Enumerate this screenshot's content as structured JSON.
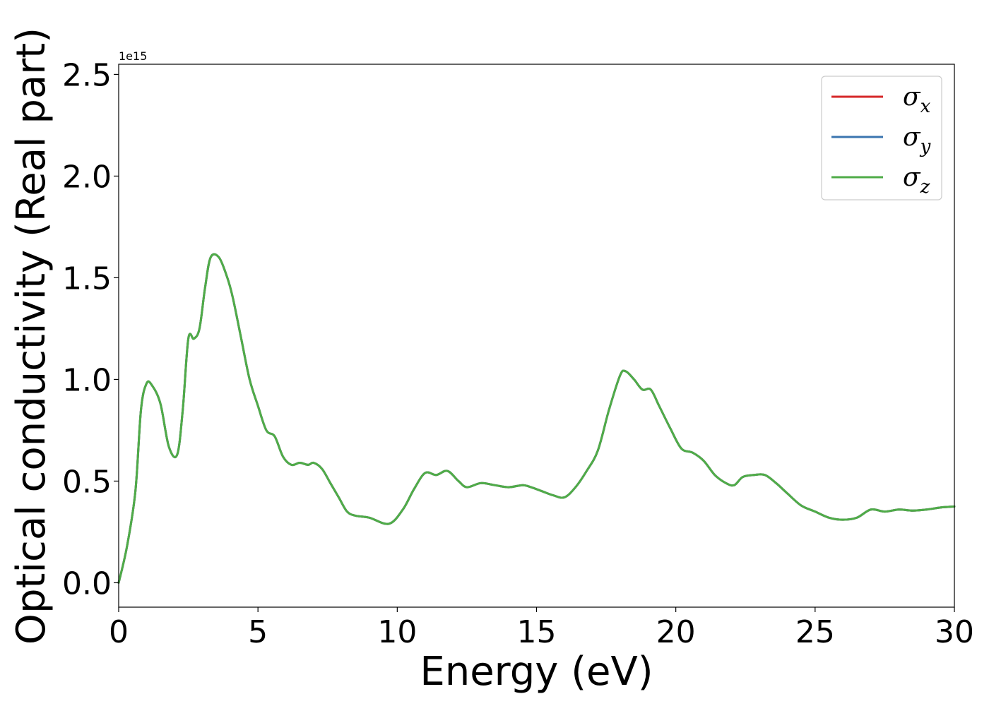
{
  "chart_data": {
    "type": "line",
    "title": "",
    "xlabel": "Energy (eV)",
    "ylabel": "Optical conductivity (Real part)",
    "y_offset_label": "1e15",
    "xlim": [
      0,
      30
    ],
    "ylim": [
      -0.12,
      2.55
    ],
    "x_ticks": [
      0,
      5,
      10,
      15,
      20,
      25,
      30
    ],
    "x_tick_labels": [
      "0",
      "5",
      "10",
      "15",
      "20",
      "25",
      "30"
    ],
    "y_ticks": [
      0.0,
      0.5,
      1.0,
      1.5,
      2.0,
      2.5
    ],
    "y_tick_labels": [
      "0.0",
      "0.5",
      "1.0",
      "1.5",
      "2.0",
      "2.5"
    ],
    "grid": false,
    "legend_position": "top-right",
    "x": [
      0,
      0.3,
      0.6,
      0.8,
      1.0,
      1.2,
      1.5,
      1.8,
      2.1,
      2.3,
      2.5,
      2.7,
      2.9,
      3.1,
      3.3,
      3.6,
      3.9,
      4.1,
      4.4,
      4.7,
      5.0,
      5.3,
      5.6,
      5.9,
      6.2,
      6.5,
      6.8,
      7.0,
      7.3,
      7.6,
      7.9,
      8.2,
      8.5,
      9.0,
      9.7,
      10.2,
      10.6,
      11.0,
      11.4,
      11.8,
      12.2,
      12.5,
      13.0,
      13.5,
      14.0,
      14.5,
      14.8,
      15.2,
      15.6,
      16.0,
      16.4,
      16.8,
      17.2,
      17.6,
      18.0,
      18.2,
      18.5,
      18.8,
      19.1,
      19.4,
      19.8,
      20.2,
      20.6,
      21.0,
      21.4,
      21.8,
      22.1,
      22.4,
      22.8,
      23.2,
      23.6,
      24.0,
      24.5,
      25.0,
      25.5,
      26.0,
      26.5,
      27.0,
      27.5,
      28.0,
      28.5,
      29.0,
      29.5,
      30.0
    ],
    "series": [
      {
        "name": "σx",
        "subscript": "x",
        "color": "#d62728",
        "values": [
          0.0,
          0.18,
          0.45,
          0.85,
          0.98,
          0.97,
          0.88,
          0.67,
          0.63,
          0.85,
          1.2,
          1.2,
          1.25,
          1.45,
          1.6,
          1.6,
          1.5,
          1.4,
          1.2,
          1.0,
          0.87,
          0.75,
          0.72,
          0.62,
          0.58,
          0.59,
          0.58,
          0.59,
          0.56,
          0.49,
          0.42,
          0.35,
          0.33,
          0.32,
          0.29,
          0.36,
          0.46,
          0.54,
          0.53,
          0.55,
          0.5,
          0.47,
          0.49,
          0.48,
          0.47,
          0.48,
          0.47,
          0.45,
          0.43,
          0.42,
          0.47,
          0.55,
          0.65,
          0.85,
          1.02,
          1.04,
          1.0,
          0.95,
          0.95,
          0.87,
          0.76,
          0.66,
          0.64,
          0.6,
          0.53,
          0.49,
          0.48,
          0.52,
          0.53,
          0.53,
          0.49,
          0.44,
          0.38,
          0.35,
          0.32,
          0.31,
          0.32,
          0.36,
          0.35,
          0.36,
          0.355,
          0.36,
          0.37,
          0.375
        ]
      },
      {
        "name": "σy",
        "subscript": "y",
        "color": "#3b75af",
        "values": [
          0.0,
          0.18,
          0.45,
          0.85,
          0.98,
          0.97,
          0.88,
          0.67,
          0.63,
          0.85,
          1.2,
          1.2,
          1.25,
          1.45,
          1.6,
          1.6,
          1.5,
          1.4,
          1.2,
          1.0,
          0.87,
          0.75,
          0.72,
          0.62,
          0.58,
          0.59,
          0.58,
          0.59,
          0.56,
          0.49,
          0.42,
          0.35,
          0.33,
          0.32,
          0.29,
          0.36,
          0.46,
          0.54,
          0.53,
          0.55,
          0.5,
          0.47,
          0.49,
          0.48,
          0.47,
          0.48,
          0.47,
          0.45,
          0.43,
          0.42,
          0.47,
          0.55,
          0.65,
          0.85,
          1.02,
          1.04,
          1.0,
          0.95,
          0.95,
          0.87,
          0.76,
          0.66,
          0.64,
          0.6,
          0.53,
          0.49,
          0.48,
          0.52,
          0.53,
          0.53,
          0.49,
          0.44,
          0.38,
          0.35,
          0.32,
          0.31,
          0.32,
          0.36,
          0.35,
          0.36,
          0.355,
          0.36,
          0.37,
          0.375
        ]
      },
      {
        "name": "σz",
        "subscript": "z",
        "color": "#4fac48",
        "values": [
          0.0,
          0.18,
          0.45,
          0.85,
          0.98,
          0.97,
          0.88,
          0.67,
          0.63,
          0.85,
          1.2,
          1.2,
          1.25,
          1.45,
          1.6,
          1.6,
          1.5,
          1.4,
          1.2,
          1.0,
          0.87,
          0.75,
          0.72,
          0.62,
          0.58,
          0.59,
          0.58,
          0.59,
          0.56,
          0.49,
          0.42,
          0.35,
          0.33,
          0.32,
          0.29,
          0.36,
          0.46,
          0.54,
          0.53,
          0.55,
          0.5,
          0.47,
          0.49,
          0.48,
          0.47,
          0.48,
          0.47,
          0.45,
          0.43,
          0.42,
          0.47,
          0.55,
          0.65,
          0.85,
          1.02,
          1.04,
          1.0,
          0.95,
          0.95,
          0.87,
          0.76,
          0.66,
          0.64,
          0.6,
          0.53,
          0.49,
          0.48,
          0.52,
          0.53,
          0.53,
          0.49,
          0.44,
          0.38,
          0.35,
          0.32,
          0.31,
          0.32,
          0.36,
          0.35,
          0.36,
          0.355,
          0.36,
          0.37,
          0.375
        ]
      }
    ]
  }
}
